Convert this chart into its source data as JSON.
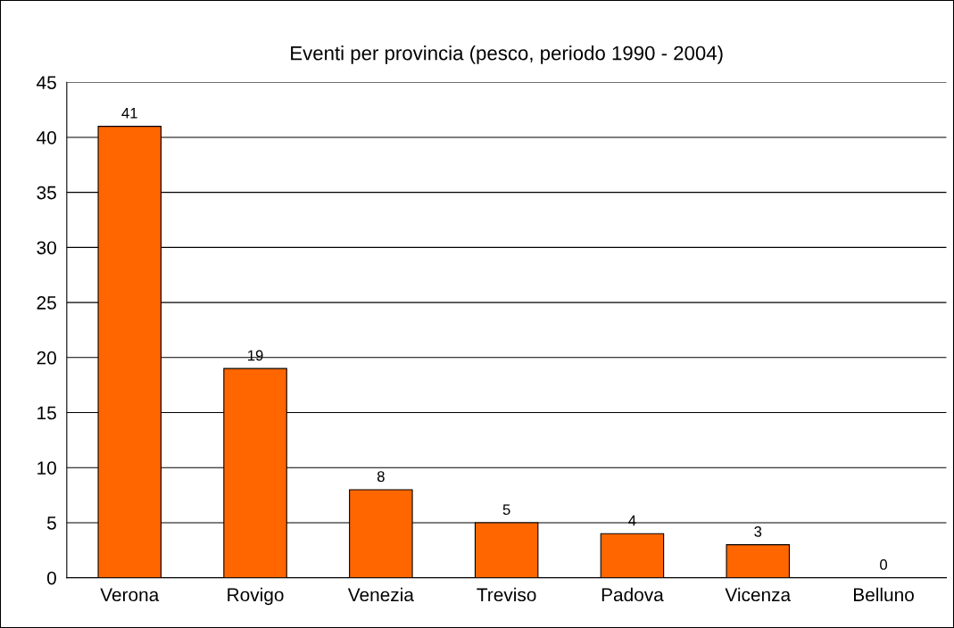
{
  "chart_data": {
    "type": "bar",
    "title": "Eventi per provincia (pesco, periodo 1990 - 2004)",
    "categories": [
      "Verona",
      "Rovigo",
      "Venezia",
      "Treviso",
      "Padova",
      "Vicenza",
      "Belluno"
    ],
    "values": [
      41,
      19,
      8,
      5,
      4,
      3,
      0
    ],
    "color": "#ff6600",
    "ylim": [
      0,
      45
    ],
    "yticks": [
      0,
      5,
      10,
      15,
      20,
      25,
      30,
      35,
      40,
      45
    ],
    "grid": "y",
    "data_labels": true,
    "legend": false
  }
}
